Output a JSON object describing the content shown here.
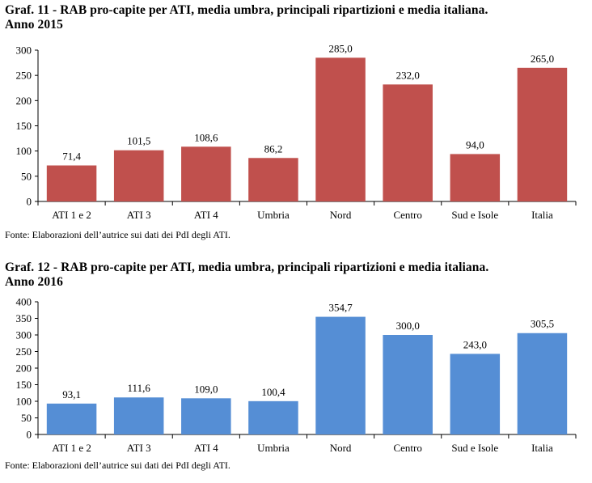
{
  "charts": [
    {
      "title_line1": "Graf.  11 - RAB pro-capite per ATI, media umbra, principali ripartizioni e media italiana.",
      "title_line2": "Anno 2015",
      "source": "Fonte: Elaborazioni dell’autrice sui dati dei PdI degli ATI."
    },
    {
      "title_line1": "Graf.  12 - RAB pro-capite per ATI, media umbra, principali ripartizioni e media italiana.",
      "title_line2": "Anno 2016",
      "source": "Fonte: Elaborazioni dell’autrice sui dati dei PdI degli ATI."
    }
  ],
  "chart_data": [
    {
      "type": "bar",
      "title": "Graf.  11 - RAB pro-capite per ATI, media umbra, principali ripartizioni e media italiana. Anno 2015",
      "categories": [
        "ATI 1 e 2",
        "ATI 3",
        "ATI 4",
        "Umbria",
        "Nord",
        "Centro",
        "Sud e Isole",
        "Italia"
      ],
      "values": [
        71.4,
        101.5,
        108.6,
        86.2,
        285.0,
        232.0,
        94.0,
        265.0
      ],
      "value_labels": [
        "71,4",
        "101,5",
        "108,6",
        "86,2",
        "285,0",
        "232,0",
        "94,0",
        "265,0"
      ],
      "yticks": [
        0,
        50,
        100,
        150,
        200,
        250,
        300
      ],
      "ylim": [
        0,
        300
      ],
      "bar_color": "#C0504D",
      "grid": false,
      "legend": "none"
    },
    {
      "type": "bar",
      "title": "Graf.  12 - RAB pro-capite per ATI, media umbra, principali ripartizioni e media italiana. Anno 2016",
      "categories": [
        "ATI 1 e 2",
        "ATI 3",
        "ATI 4",
        "Umbria",
        "Nord",
        "Centro",
        "Sud e Isole",
        "Italia"
      ],
      "values": [
        93.1,
        111.6,
        109.0,
        100.4,
        354.7,
        300.0,
        243.0,
        305.5
      ],
      "value_labels": [
        "93,1",
        "111,6",
        "109,0",
        "100,4",
        "354,7",
        "300,0",
        "243,0",
        "305,5"
      ],
      "yticks": [
        0,
        50,
        100,
        150,
        200,
        250,
        300,
        350,
        400
      ],
      "ylim": [
        0,
        400
      ],
      "bar_color": "#558ED5",
      "grid": false,
      "legend": "none"
    }
  ]
}
